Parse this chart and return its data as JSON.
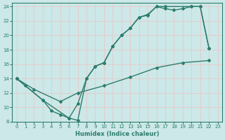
{
  "xlabel": "Humidex (Indice chaleur)",
  "xlim": [
    -0.5,
    23.5
  ],
  "ylim": [
    8,
    24.5
  ],
  "xticks": [
    0,
    1,
    2,
    3,
    4,
    5,
    6,
    7,
    8,
    9,
    10,
    11,
    12,
    13,
    14,
    15,
    16,
    17,
    18,
    19,
    20,
    21,
    22,
    23
  ],
  "yticks": [
    8,
    10,
    12,
    14,
    16,
    18,
    20,
    22,
    24
  ],
  "bg_color": "#cce8e8",
  "line_color": "#2e7d6e",
  "grid_color": "#b8d8d8",
  "line1_x": [
    0,
    1,
    3,
    4,
    5,
    6,
    7,
    8,
    9,
    10,
    11,
    12,
    13,
    14,
    15,
    16,
    17,
    20,
    21,
    22
  ],
  "line1_y": [
    14,
    13,
    11,
    9.5,
    9.0,
    8.5,
    8.2,
    14.0,
    15.7,
    16.2,
    18.5,
    20.0,
    21.0,
    22.5,
    22.8,
    24.0,
    24.0,
    24.0,
    24.0,
    18.2
  ],
  "line2_x": [
    0,
    3,
    6,
    7,
    8,
    9,
    10,
    11,
    12,
    13,
    14,
    15,
    16,
    17,
    18,
    19,
    20,
    21,
    22
  ],
  "line2_y": [
    14,
    11,
    8.5,
    10.5,
    14.0,
    15.7,
    16.2,
    18.5,
    20.0,
    21.0,
    22.5,
    22.9,
    24.0,
    23.7,
    23.5,
    23.7,
    24.0,
    24.0,
    18.2
  ],
  "line3_x": [
    0,
    2,
    5,
    7,
    10,
    13,
    16,
    19,
    22
  ],
  "line3_y": [
    14,
    12.5,
    10.8,
    12.0,
    13.0,
    14.2,
    15.5,
    16.2,
    16.5
  ]
}
